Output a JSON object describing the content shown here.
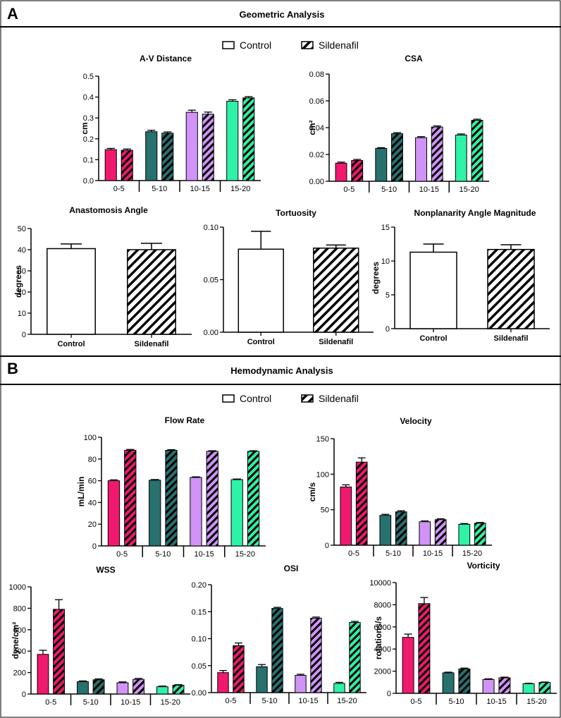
{
  "sections": [
    {
      "label": "A",
      "title": "Geometric Analysis"
    },
    {
      "label": "B",
      "title": "Hemodynamic Analysis"
    }
  ],
  "legend": {
    "control": "Control",
    "sildenafil": "Sildenafil"
  },
  "colors": {
    "g05": "#f0196e",
    "g510": "#27716f",
    "g1015": "#d193f7",
    "g1520": "#2ef2a6",
    "axis": "#000000",
    "neutral": "#ffffff"
  },
  "chart_data": [
    {
      "id": "av",
      "type": "bar",
      "title": "A-V Distance",
      "ylabel": "cm",
      "ylim": [
        0,
        0.5
      ],
      "yticks": [
        "0.0",
        "0.1",
        "0.2",
        "0.3",
        "0.4",
        "0.5"
      ],
      "categories": [
        "0-5",
        "5-10",
        "10-15",
        "15-20"
      ],
      "series": [
        {
          "name": "Control",
          "values": [
            0.148,
            0.234,
            0.327,
            0.38
          ],
          "err": [
            0.006,
            0.007,
            0.01,
            0.007
          ]
        },
        {
          "name": "Sildenafil",
          "values": [
            0.145,
            0.227,
            0.318,
            0.396
          ],
          "err": [
            0.006,
            0.006,
            0.01,
            0.006
          ]
        }
      ]
    },
    {
      "id": "csa",
      "type": "bar",
      "title": "CSA",
      "ylabel": "cm²",
      "ylim": [
        0,
        0.08
      ],
      "yticks": [
        "0.00",
        "0.02",
        "0.04",
        "0.06",
        "0.08"
      ],
      "categories": [
        "0-5",
        "5-10",
        "10-15",
        "15-20"
      ],
      "series": [
        {
          "name": "Control",
          "values": [
            0.0135,
            0.0245,
            0.0325,
            0.0345
          ],
          "err": [
            0.0008,
            0.0006,
            0.0008,
            0.0008
          ]
        },
        {
          "name": "Sildenafil",
          "values": [
            0.0155,
            0.0355,
            0.0405,
            0.0455
          ],
          "err": [
            0.0008,
            0.0008,
            0.0008,
            0.0008
          ]
        }
      ]
    },
    {
      "id": "ana",
      "type": "bar",
      "title": "Anastomosis Angle",
      "ylabel": "degrees",
      "ylim": [
        0,
        50
      ],
      "yticks": [
        "0",
        "10",
        "20",
        "30",
        "40",
        "50"
      ],
      "categories": [
        "Control",
        "Sildenafil"
      ],
      "values": [
        40.5,
        40.0
      ],
      "err": [
        2.2,
        3.0
      ]
    },
    {
      "id": "tort",
      "type": "bar",
      "title": "Tortuosity",
      "ylabel": "",
      "ylim": [
        0,
        0.1
      ],
      "yticks": [
        "0.00",
        "0.05",
        "0.10"
      ],
      "categories": [
        "Control",
        "Sildenafil"
      ],
      "values": [
        0.079,
        0.08
      ],
      "err": [
        0.017,
        0.003
      ]
    },
    {
      "id": "npa",
      "type": "bar",
      "title": "Nonplanarity  Angle Magnitude",
      "ylabel": "degrees",
      "ylim": [
        0,
        15
      ],
      "yticks": [
        "0",
        "5",
        "10",
        "15"
      ],
      "categories": [
        "Control",
        "Sildenafil"
      ],
      "values": [
        11.3,
        11.7
      ],
      "err": [
        1.2,
        0.7
      ]
    },
    {
      "id": "flow",
      "type": "bar",
      "title": "Flow Rate",
      "ylabel": "mL/min",
      "ylim": [
        0,
        100
      ],
      "yticks": [
        "0",
        "20",
        "40",
        "60",
        "80",
        "100"
      ],
      "categories": [
        "0-5",
        "5-10",
        "10-15",
        "15-20"
      ],
      "series": [
        {
          "name": "Control",
          "values": [
            60,
            60.5,
            63,
            61
          ],
          "err": [
            0.8,
            0.6,
            0.6,
            0.6
          ]
        },
        {
          "name": "Sildenafil",
          "values": [
            88,
            88,
            87,
            87
          ],
          "err": [
            0.8,
            0.6,
            0.6,
            0.6
          ]
        }
      ]
    },
    {
      "id": "vel",
      "type": "bar",
      "title": "Velocity",
      "ylabel": "cm/s",
      "ylim": [
        0,
        150
      ],
      "yticks": [
        "0",
        "50",
        "100",
        "150"
      ],
      "categories": [
        "0-5",
        "5-10",
        "10-15",
        "15-20"
      ],
      "series": [
        {
          "name": "Control",
          "values": [
            82,
            42,
            33,
            29.5
          ],
          "err": [
            3,
            1.5,
            1.2,
            1
          ]
        },
        {
          "name": "Sildenafil",
          "values": [
            117,
            47,
            36,
            31
          ],
          "err": [
            6,
            1.5,
            1.2,
            1
          ]
        }
      ]
    },
    {
      "id": "wss",
      "type": "bar",
      "title": "WSS",
      "ylabel": "dyne/cm²",
      "ylim": [
        0,
        1000
      ],
      "yticks": [
        "0",
        "200",
        "400",
        "600",
        "800",
        "1000"
      ],
      "categories": [
        "0-5",
        "5-10",
        "10-15",
        "15-20"
      ],
      "series": [
        {
          "name": "Control",
          "values": [
            370,
            115,
            105,
            68
          ],
          "err": [
            38,
            7,
            8,
            6
          ]
        },
        {
          "name": "Sildenafil",
          "values": [
            790,
            133,
            137,
            82
          ],
          "err": [
            90,
            8,
            8,
            5
          ]
        }
      ]
    },
    {
      "id": "osi",
      "type": "bar",
      "title": "OSI",
      "ylabel": "",
      "ylim": [
        0,
        0.2
      ],
      "yticks": [
        "0.00",
        "0.05",
        "0.10",
        "0.15",
        "0.20"
      ],
      "categories": [
        "0-5",
        "5-10",
        "10-15",
        "15-20"
      ],
      "series": [
        {
          "name": "Control",
          "values": [
            0.037,
            0.048,
            0.032,
            0.017
          ],
          "err": [
            0.004,
            0.004,
            0.002,
            0.002
          ]
        },
        {
          "name": "Sildenafil",
          "values": [
            0.087,
            0.156,
            0.138,
            0.13
          ],
          "err": [
            0.005,
            0.002,
            0.002,
            0.002
          ]
        }
      ]
    },
    {
      "id": "vort",
      "type": "bar",
      "title": "Vorticity",
      "ylabel": "rotations/s",
      "ylim": [
        0,
        10000
      ],
      "yticks": [
        "0",
        "2000",
        "4000",
        "6000",
        "8000",
        "10000"
      ],
      "categories": [
        "0-5",
        "5-10",
        "10-15",
        "15-20"
      ],
      "series": [
        {
          "name": "Control",
          "values": [
            5050,
            1850,
            1250,
            870
          ],
          "err": [
            300,
            60,
            60,
            40
          ]
        },
        {
          "name": "Sildenafil",
          "values": [
            8100,
            2200,
            1400,
            980
          ],
          "err": [
            550,
            80,
            60,
            40
          ]
        }
      ]
    }
  ]
}
